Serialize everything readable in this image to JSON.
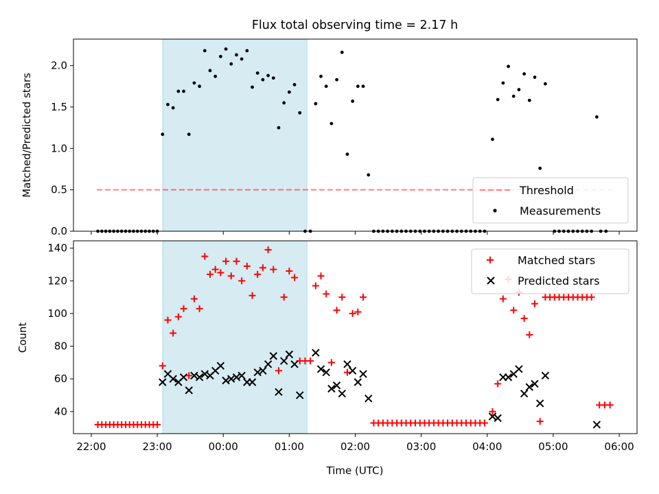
{
  "title": "Flux total observing time = 2.17 h",
  "colors": {
    "shade": "#add8e6",
    "threshold": "#ff0000",
    "measurement": "#000000",
    "matched": "#ff0000",
    "predicted": "#000000"
  },
  "chart_data": [
    {
      "type": "scatter",
      "ylabel": "Matched/Predicted stars",
      "xlim": [
        -0.27,
        8.27
      ],
      "ylim": [
        0,
        2.32
      ],
      "x_tick_values": [
        0,
        1,
        2,
        3,
        4,
        5,
        6,
        7,
        8
      ],
      "y_tick_values": [
        0.0,
        0.5,
        1.0,
        1.5,
        2.0
      ],
      "y_tick_labels": [
        "0.0",
        "0.5",
        "1.0",
        "1.5",
        "2.0"
      ],
      "shaded_span": [
        "23:05",
        "01:16"
      ],
      "legend": [
        "Threshold",
        "Measurements"
      ],
      "legend_position": "lower-right",
      "threshold": {
        "y": 0.5,
        "x_from": "22:05",
        "x_to": "05:53"
      },
      "series": [
        {
          "name": "Measurements",
          "points": [
            [
              0.1,
              0
            ],
            [
              0.16,
              0
            ],
            [
              0.22,
              0
            ],
            [
              0.28,
              0
            ],
            [
              0.34,
              0
            ],
            [
              0.4,
              0
            ],
            [
              0.46,
              0
            ],
            [
              0.52,
              0
            ],
            [
              0.58,
              0
            ],
            [
              0.64,
              0
            ],
            [
              0.7,
              0
            ],
            [
              0.76,
              0
            ],
            [
              0.82,
              0
            ],
            [
              0.88,
              0
            ],
            [
              0.94,
              0
            ],
            [
              1.0,
              0
            ],
            [
              1.08,
              1.17
            ],
            [
              1.16,
              1.53
            ],
            [
              1.24,
              1.49
            ],
            [
              1.32,
              1.69
            ],
            [
              1.4,
              1.69
            ],
            [
              1.48,
              1.17
            ],
            [
              1.56,
              1.79
            ],
            [
              1.64,
              1.75
            ],
            [
              1.72,
              2.18
            ],
            [
              1.8,
              1.94
            ],
            [
              1.88,
              1.87
            ],
            [
              1.96,
              2.11
            ],
            [
              2.04,
              2.2
            ],
            [
              2.12,
              2.02
            ],
            [
              2.2,
              2.13
            ],
            [
              2.28,
              2.08
            ],
            [
              2.36,
              2.18
            ],
            [
              2.44,
              1.74
            ],
            [
              2.52,
              1.91
            ],
            [
              2.6,
              1.83
            ],
            [
              2.68,
              1.88
            ],
            [
              2.76,
              1.85
            ],
            [
              2.84,
              1.25
            ],
            [
              2.92,
              1.55
            ],
            [
              3.0,
              1.68
            ],
            [
              3.08,
              1.77
            ],
            [
              3.16,
              1.43
            ],
            [
              3.24,
              0
            ],
            [
              3.32,
              0
            ],
            [
              3.4,
              1.54
            ],
            [
              3.48,
              1.87
            ],
            [
              3.56,
              1.75
            ],
            [
              3.64,
              1.3
            ],
            [
              3.72,
              1.83
            ],
            [
              3.8,
              2.16
            ],
            [
              3.88,
              0.93
            ],
            [
              3.96,
              1.57
            ],
            [
              4.04,
              1.75
            ],
            [
              4.12,
              1.75
            ],
            [
              4.2,
              0.68
            ],
            [
              4.28,
              0
            ],
            [
              4.35,
              0
            ],
            [
              4.42,
              0
            ],
            [
              4.49,
              0
            ],
            [
              4.56,
              0
            ],
            [
              4.63,
              0
            ],
            [
              4.7,
              0
            ],
            [
              4.77,
              0
            ],
            [
              4.84,
              0
            ],
            [
              4.91,
              0
            ],
            [
              4.98,
              0
            ],
            [
              5.05,
              0
            ],
            [
              5.12,
              0
            ],
            [
              5.19,
              0
            ],
            [
              5.26,
              0
            ],
            [
              5.33,
              0
            ],
            [
              5.4,
              0
            ],
            [
              5.47,
              0
            ],
            [
              5.54,
              0
            ],
            [
              5.61,
              0
            ],
            [
              5.68,
              0
            ],
            [
              5.75,
              0
            ],
            [
              5.82,
              0
            ],
            [
              5.89,
              0
            ],
            [
              5.96,
              0
            ],
            [
              6.08,
              1.11
            ],
            [
              6.16,
              1.59
            ],
            [
              6.24,
              1.79
            ],
            [
              6.32,
              1.99
            ],
            [
              6.4,
              1.63
            ],
            [
              6.48,
              1.71
            ],
            [
              6.56,
              1.9
            ],
            [
              6.64,
              1.58
            ],
            [
              6.72,
              1.86
            ],
            [
              6.8,
              0.76
            ],
            [
              6.88,
              1.78
            ],
            [
              7.02,
              0
            ],
            [
              7.09,
              0
            ],
            [
              7.16,
              0
            ],
            [
              7.23,
              0
            ],
            [
              7.3,
              0
            ],
            [
              7.37,
              0
            ],
            [
              7.44,
              0
            ],
            [
              7.51,
              0
            ],
            [
              7.58,
              0
            ],
            [
              7.66,
              1.38
            ],
            [
              7.72,
              0
            ],
            [
              7.8,
              0
            ]
          ]
        }
      ]
    },
    {
      "type": "scatter",
      "xlabel": "Time (UTC)",
      "ylabel": "Count",
      "xlim": [
        -0.27,
        8.27
      ],
      "ylim": [
        26.5,
        144.5
      ],
      "x_tick_values": [
        0,
        1,
        2,
        3,
        4,
        5,
        6,
        7,
        8
      ],
      "x_tick_labels": [
        "22:00",
        "23:00",
        "00:00",
        "01:00",
        "02:00",
        "03:00",
        "04:00",
        "05:00",
        "06:00"
      ],
      "y_tick_values": [
        40,
        60,
        80,
        100,
        120,
        140
      ],
      "y_tick_labels": [
        "40",
        "60",
        "80",
        "100",
        "120",
        "140"
      ],
      "shaded_span": [
        "23:05",
        "01:16"
      ],
      "legend": [
        "Matched stars",
        "Predicted stars"
      ],
      "legend_position": "upper-right",
      "series": [
        {
          "name": "Matched stars",
          "marker": "plus",
          "points": [
            [
              0.1,
              32
            ],
            [
              0.16,
              32
            ],
            [
              0.22,
              32
            ],
            [
              0.28,
              32
            ],
            [
              0.34,
              32
            ],
            [
              0.4,
              32
            ],
            [
              0.46,
              32
            ],
            [
              0.52,
              32
            ],
            [
              0.58,
              32
            ],
            [
              0.64,
              32
            ],
            [
              0.7,
              32
            ],
            [
              0.76,
              32
            ],
            [
              0.82,
              32
            ],
            [
              0.88,
              32
            ],
            [
              0.94,
              32
            ],
            [
              1.0,
              32
            ],
            [
              1.08,
              68
            ],
            [
              1.16,
              96
            ],
            [
              1.24,
              88
            ],
            [
              1.32,
              98
            ],
            [
              1.4,
              103
            ],
            [
              1.48,
              62
            ],
            [
              1.56,
              109
            ],
            [
              1.64,
              103
            ],
            [
              1.72,
              135
            ],
            [
              1.8,
              124
            ],
            [
              1.88,
              127
            ],
            [
              1.96,
              125
            ],
            [
              2.04,
              132
            ],
            [
              2.12,
              123
            ],
            [
              2.2,
              132
            ],
            [
              2.28,
              120
            ],
            [
              2.36,
              129
            ],
            [
              2.44,
              111
            ],
            [
              2.52,
              124
            ],
            [
              2.6,
              128
            ],
            [
              2.68,
              139
            ],
            [
              2.76,
              127
            ],
            [
              2.84,
              65
            ],
            [
              2.92,
              110
            ],
            [
              3.0,
              126
            ],
            [
              3.08,
              122
            ],
            [
              3.16,
              71
            ],
            [
              3.24,
              71
            ],
            [
              3.32,
              71
            ],
            [
              3.4,
              117
            ],
            [
              3.48,
              123
            ],
            [
              3.56,
              112
            ],
            [
              3.64,
              70
            ],
            [
              3.72,
              102
            ],
            [
              3.8,
              110
            ],
            [
              3.88,
              64
            ],
            [
              3.96,
              100
            ],
            [
              4.04,
              101
            ],
            [
              4.12,
              110
            ],
            [
              4.28,
              33
            ],
            [
              4.35,
              33
            ],
            [
              4.42,
              33
            ],
            [
              4.49,
              33
            ],
            [
              4.56,
              33
            ],
            [
              4.63,
              33
            ],
            [
              4.7,
              33
            ],
            [
              4.77,
              33
            ],
            [
              4.84,
              33
            ],
            [
              4.91,
              33
            ],
            [
              4.98,
              33
            ],
            [
              5.05,
              33
            ],
            [
              5.12,
              33
            ],
            [
              5.19,
              33
            ],
            [
              5.26,
              33
            ],
            [
              5.33,
              33
            ],
            [
              5.4,
              33
            ],
            [
              5.47,
              33
            ],
            [
              5.54,
              33
            ],
            [
              5.61,
              33
            ],
            [
              5.68,
              33
            ],
            [
              5.75,
              33
            ],
            [
              5.82,
              33
            ],
            [
              5.89,
              33
            ],
            [
              5.96,
              33
            ],
            [
              6.08,
              40
            ],
            [
              6.16,
              57
            ],
            [
              6.24,
              109
            ],
            [
              6.32,
              121
            ],
            [
              6.4,
              102
            ],
            [
              6.48,
              113
            ],
            [
              6.56,
              97
            ],
            [
              6.64,
              87
            ],
            [
              6.72,
              106
            ],
            [
              6.8,
              34
            ],
            [
              6.88,
              110
            ],
            [
              6.95,
              110
            ],
            [
              7.02,
              110
            ],
            [
              7.09,
              110
            ],
            [
              7.16,
              110
            ],
            [
              7.23,
              110
            ],
            [
              7.3,
              110
            ],
            [
              7.37,
              110
            ],
            [
              7.44,
              110
            ],
            [
              7.51,
              110
            ],
            [
              7.58,
              110
            ],
            [
              7.7,
              44
            ],
            [
              7.78,
              44
            ],
            [
              7.86,
              44
            ]
          ]
        },
        {
          "name": "Predicted stars",
          "marker": "x",
          "points": [
            [
              1.08,
              58
            ],
            [
              1.16,
              63
            ],
            [
              1.24,
              60
            ],
            [
              1.32,
              58
            ],
            [
              1.4,
              61
            ],
            [
              1.48,
              53
            ],
            [
              1.56,
              62
            ],
            [
              1.64,
              61
            ],
            [
              1.72,
              63
            ],
            [
              1.8,
              62
            ],
            [
              1.88,
              65
            ],
            [
              1.96,
              68
            ],
            [
              2.04,
              59
            ],
            [
              2.12,
              60
            ],
            [
              2.2,
              61
            ],
            [
              2.28,
              62
            ],
            [
              2.36,
              58
            ],
            [
              2.44,
              58
            ],
            [
              2.52,
              64
            ],
            [
              2.6,
              65
            ],
            [
              2.68,
              69
            ],
            [
              2.76,
              74
            ],
            [
              2.84,
              52
            ],
            [
              2.92,
              71
            ],
            [
              3.0,
              75
            ],
            [
              3.08,
              69
            ],
            [
              3.16,
              50
            ],
            [
              3.4,
              76
            ],
            [
              3.48,
              66
            ],
            [
              3.56,
              64
            ],
            [
              3.64,
              54
            ],
            [
              3.72,
              56
            ],
            [
              3.8,
              51
            ],
            [
              3.88,
              69
            ],
            [
              3.96,
              65
            ],
            [
              4.04,
              58
            ],
            [
              4.12,
              63
            ],
            [
              4.2,
              48
            ],
            [
              6.08,
              37
            ],
            [
              6.16,
              36
            ],
            [
              6.24,
              61
            ],
            [
              6.32,
              61
            ],
            [
              6.4,
              63
            ],
            [
              6.48,
              66
            ],
            [
              6.56,
              51
            ],
            [
              6.64,
              55
            ],
            [
              6.72,
              57
            ],
            [
              6.8,
              45
            ],
            [
              6.88,
              62
            ],
            [
              7.66,
              32
            ]
          ]
        }
      ]
    }
  ]
}
